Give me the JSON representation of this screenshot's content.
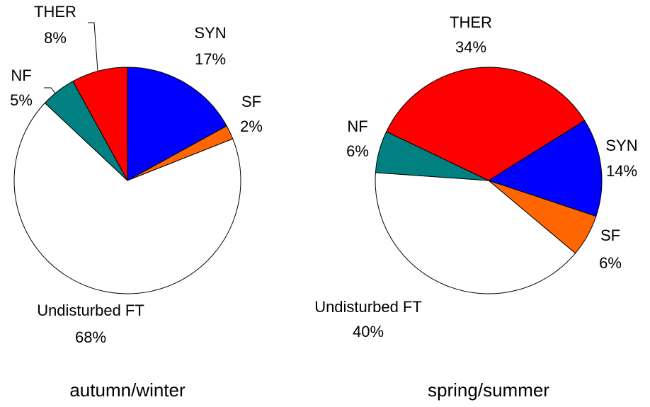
{
  "chart_data": [
    {
      "type": "pie",
      "title": "autumn/winter",
      "categories": [
        "SYN",
        "SF",
        "Undisturbed FT",
        "NF",
        "THER"
      ],
      "values": [
        17,
        2,
        68,
        5,
        8
      ],
      "value_labels": [
        "17%",
        "2%",
        "68%",
        "5%",
        "8%"
      ],
      "colors": [
        "#0000ff",
        "#ff6600",
        "#ffffff",
        "#008080",
        "#ff0000"
      ]
    },
    {
      "type": "pie",
      "title": "spring/summer",
      "categories": [
        "SYN",
        "SF",
        "Undisturbed FT",
        "NF",
        "THER"
      ],
      "values": [
        14,
        6,
        40,
        6,
        34
      ],
      "value_labels": [
        "14%",
        "6%",
        "40%",
        "6%",
        "34%"
      ],
      "colors": [
        "#0000ff",
        "#ff6600",
        "#ffffff",
        "#008080",
        "#ff0000"
      ]
    }
  ]
}
